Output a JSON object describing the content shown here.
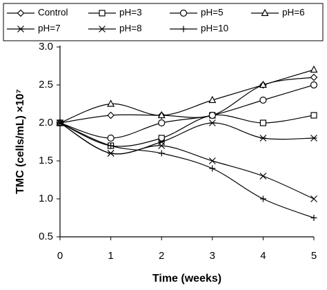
{
  "chart_data": {
    "type": "line",
    "x_label": "Time (weeks)",
    "y_label": "TMC (cells/mL) ×10⁷",
    "x": [
      0,
      1,
      2,
      3,
      4,
      5
    ],
    "xlim": [
      0,
      5
    ],
    "xticks": [
      0,
      1,
      2,
      3,
      4,
      5
    ],
    "ylim": [
      0.5,
      3.0
    ],
    "yticks": [
      0.5,
      {
        "value": 1.0,
        "label": "1.0"
      },
      1.5,
      {
        "value": 2.0,
        "label": "2.0"
      },
      2.5,
      {
        "value": 3.0,
        "label": "3.0"
      }
    ],
    "smooth": true,
    "series": [
      {
        "name": "Control",
        "color": "#000000",
        "marker": "diamond",
        "values": [
          2.0,
          2.1,
          2.1,
          2.1,
          2.5,
          2.6
        ]
      },
      {
        "name": "pH=3",
        "color": "#000000",
        "marker": "square",
        "values": [
          2.0,
          1.7,
          1.8,
          2.1,
          2.0,
          2.1
        ]
      },
      {
        "name": "pH=5",
        "color": "#000000",
        "marker": "circle",
        "values": [
          2.0,
          1.8,
          2.0,
          2.1,
          2.3,
          2.5
        ]
      },
      {
        "name": "pH=6",
        "color": "#000000",
        "marker": "triangle",
        "values": [
          2.0,
          2.25,
          2.1,
          2.3,
          2.5,
          2.7
        ]
      },
      {
        "name": "pH=7",
        "color": "#000000",
        "marker": "asterisk",
        "values": [
          2.0,
          1.6,
          1.75,
          2.0,
          1.8,
          1.8
        ]
      },
      {
        "name": "pH=8",
        "color": "#000000",
        "marker": "x",
        "values": [
          2.0,
          1.6,
          1.7,
          1.5,
          1.3,
          1.0
        ]
      },
      {
        "name": "pH=10",
        "color": "#000000",
        "marker": "plus",
        "values": [
          2.0,
          1.7,
          1.6,
          1.4,
          1.0,
          0.75
        ]
      }
    ]
  }
}
